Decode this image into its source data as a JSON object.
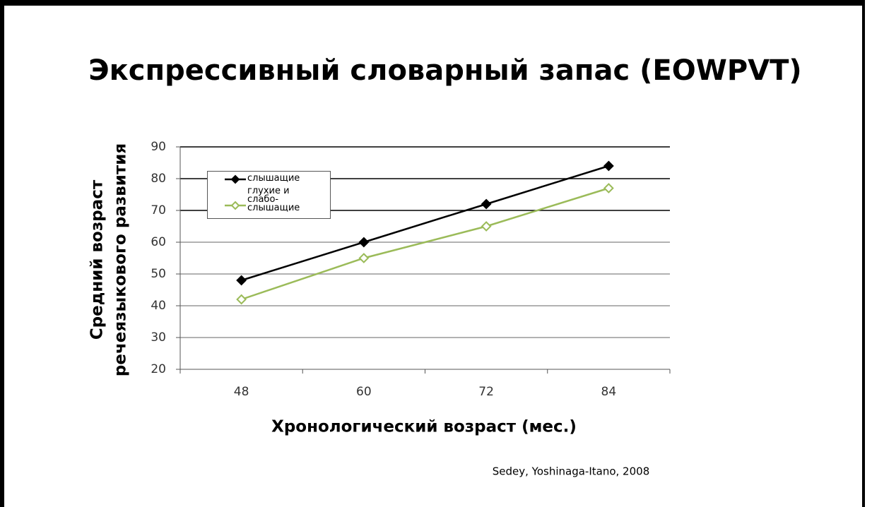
{
  "chart_data": {
    "type": "line",
    "title": "Экспрессивный словарный запас (EOWPVT)",
    "x_label": "Хронологический возраст (мес.)",
    "y_label": [
      "Средний возраст",
      "речеязыкового развития"
    ],
    "source": "Sedey, Yoshinaga-Itano, 2008",
    "categories": [
      "48",
      "60",
      "72",
      "84"
    ],
    "series": [
      {
        "name": "слышащие",
        "color": "#000000",
        "marker": "filled",
        "values": [
          48,
          60,
          72,
          84
        ]
      },
      {
        "name": "глухие и слабо-слышащие",
        "color": "#9bbb59",
        "marker": "hollow",
        "values": [
          42,
          55,
          65,
          77
        ]
      }
    ],
    "ylim": [
      20,
      90
    ],
    "yticks": [
      20,
      30,
      40,
      50,
      60,
      70,
      80,
      90
    ],
    "grid": true
  }
}
